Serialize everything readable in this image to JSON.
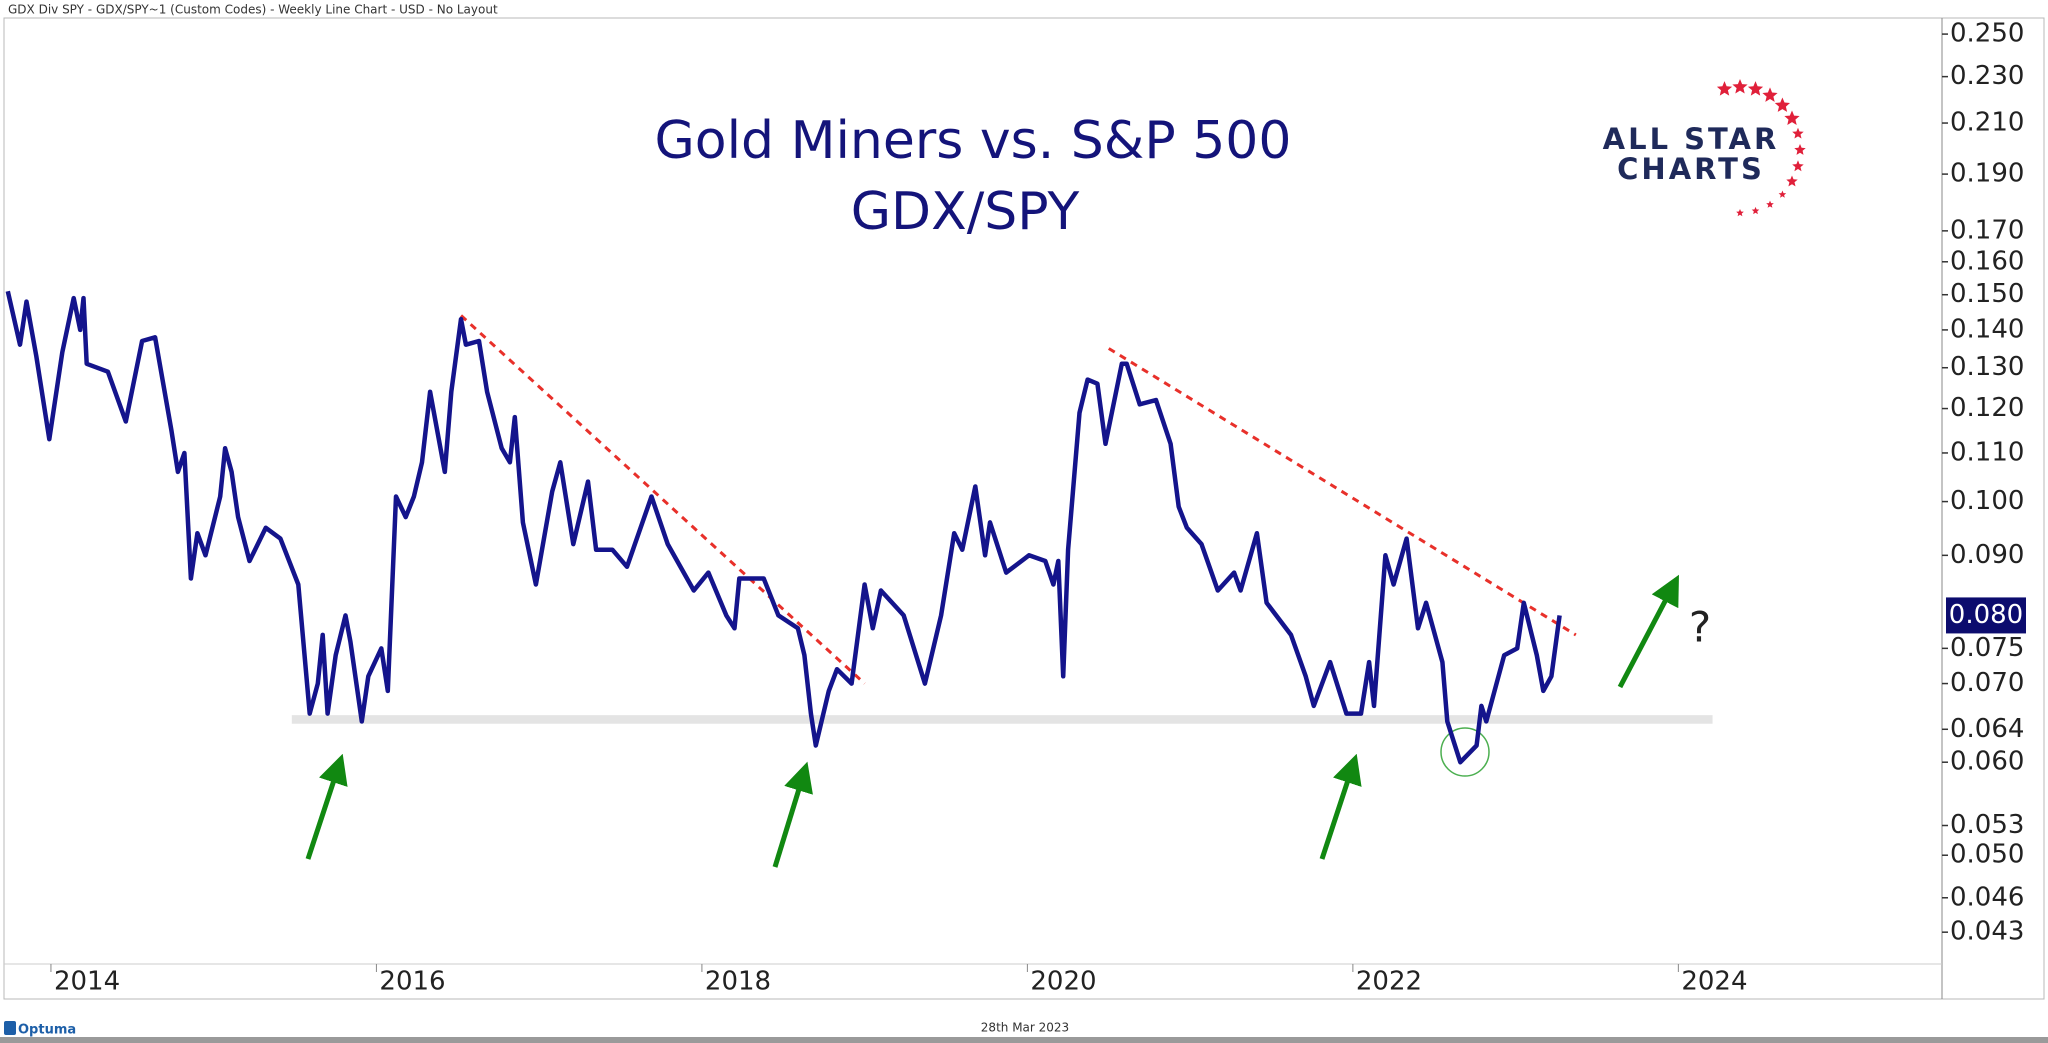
{
  "header": "GDX Div SPY - GDX/SPY~1 (Custom Codes) - Weekly Line Chart - USD - No Layout",
  "footer_date": "28th Mar 2023",
  "brand": "Optuma",
  "logo_line1": "ALL STAR",
  "logo_line2": "CHARTS",
  "chart_data": {
    "type": "line",
    "title": "Gold Miners vs. S&P 500",
    "subtitle": "GDX/SPY",
    "log_scale": true,
    "grid": false,
    "x": [
      2013.735,
      2013.81,
      2013.85,
      2013.91,
      2013.99,
      2014.07,
      2014.14,
      2014.18,
      2014.2,
      2014.22,
      2014.35,
      2014.46,
      2014.56,
      2014.64,
      2014.74,
      2014.78,
      2014.82,
      2014.86,
      2014.9,
      2014.95,
      2015.04,
      2015.07,
      2015.11,
      2015.15,
      2015.22,
      2015.32,
      2015.41,
      2015.52,
      2015.59,
      2015.64,
      2015.67,
      2015.7,
      2015.75,
      2015.81,
      2015.84,
      2015.91,
      2015.95,
      2016.03,
      2016.07,
      2016.12,
      2016.18,
      2016.23,
      2016.28,
      2016.33,
      2016.42,
      2016.46,
      2016.52,
      2016.55,
      2016.63,
      2016.68,
      2016.77,
      2016.82,
      2016.85,
      2016.9,
      2016.98,
      2017.08,
      2017.13,
      2017.21,
      2017.3,
      2017.35,
      2017.45,
      2017.54,
      2017.69,
      2017.79,
      2017.95,
      2018.04,
      2018.15,
      2018.2,
      2018.23,
      2018.38,
      2018.47,
      2018.59,
      2018.63,
      2018.67,
      2018.7,
      2018.78,
      2018.83,
      2018.92,
      2019.0,
      2019.05,
      2019.1,
      2019.24,
      2019.37,
      2019.47,
      2019.55,
      2019.6,
      2019.68,
      2019.74,
      2019.77,
      2019.87,
      2020.01,
      2020.11,
      2020.16,
      2020.19,
      2020.22,
      2020.25,
      2020.32,
      2020.37,
      2020.43,
      2020.48,
      2020.58,
      2020.61,
      2020.69,
      2020.79,
      2020.88,
      2020.93,
      2020.98,
      2021.07,
      2021.17,
      2021.27,
      2021.31,
      2021.41,
      2021.47,
      2021.62,
      2021.71,
      2021.76,
      2021.86,
      2021.96,
      2022.05,
      2022.1,
      2022.13,
      2022.2,
      2022.25,
      2022.33,
      2022.4,
      2022.45,
      2022.55,
      2022.58,
      2022.66,
      2022.76,
      2022.79,
      2022.82,
      2022.93,
      2023.01,
      2023.05,
      2023.13,
      2023.17,
      2023.22,
      2023.27
    ],
    "series": [
      {
        "color": "#14148c",
        "values": [
          0.151,
          0.136,
          0.148,
          0.133,
          0.113,
          0.134,
          0.149,
          0.14,
          0.149,
          0.131,
          0.129,
          0.117,
          0.137,
          0.138,
          0.115,
          0.106,
          0.11,
          0.086,
          0.094,
          0.09,
          0.101,
          0.111,
          0.106,
          0.097,
          0.089,
          0.095,
          0.093,
          0.085,
          0.066,
          0.07,
          0.077,
          0.066,
          0.074,
          0.08,
          0.076,
          0.065,
          0.071,
          0.075,
          0.069,
          0.101,
          0.097,
          0.101,
          0.108,
          0.124,
          0.106,
          0.124,
          0.143,
          0.136,
          0.137,
          0.124,
          0.111,
          0.108,
          0.118,
          0.096,
          0.085,
          0.102,
          0.108,
          0.092,
          0.104,
          0.091,
          0.091,
          0.088,
          0.101,
          0.092,
          0.084,
          0.087,
          0.08,
          0.078,
          0.086,
          0.086,
          0.08,
          0.078,
          0.074,
          0.066,
          0.062,
          0.069,
          0.072,
          0.07,
          0.085,
          0.078,
          0.084,
          0.08,
          0.07,
          0.08,
          0.094,
          0.091,
          0.103,
          0.09,
          0.096,
          0.087,
          0.09,
          0.089,
          0.085,
          0.089,
          0.071,
          0.091,
          0.119,
          0.127,
          0.126,
          0.112,
          0.131,
          0.131,
          0.121,
          0.122,
          0.112,
          0.099,
          0.095,
          0.092,
          0.084,
          0.087,
          0.084,
          0.094,
          0.082,
          0.077,
          0.071,
          0.067,
          0.073,
          0.066,
          0.066,
          0.073,
          0.067,
          0.09,
          0.085,
          0.093,
          0.078,
          0.082,
          0.073,
          0.065,
          0.06,
          0.062,
          0.067,
          0.065,
          0.074,
          0.075,
          0.082,
          0.074,
          0.069,
          0.071,
          0.08
        ]
      }
    ],
    "current_value_label": "0.080",
    "xlim": [
      2013.73,
      2025.62
    ],
    "xticks": [
      2014,
      2016,
      2018,
      2020,
      2022,
      2024
    ],
    "ylim": [
      0.0404,
      0.257
    ],
    "yticks": [
      {
        "value": 0.25,
        "label": "0.250"
      },
      {
        "value": 0.23,
        "label": "0.230"
      },
      {
        "value": 0.21,
        "label": "0.210"
      },
      {
        "value": 0.19,
        "label": "0.190"
      },
      {
        "value": 0.17,
        "label": "0.170"
      },
      {
        "value": 0.16,
        "label": "0.160"
      },
      {
        "value": 0.15,
        "label": "0.150"
      },
      {
        "value": 0.14,
        "label": "0.140"
      },
      {
        "value": 0.13,
        "label": "0.130"
      },
      {
        "value": 0.12,
        "label": "0.120"
      },
      {
        "value": 0.11,
        "label": "0.110"
      },
      {
        "value": 0.1,
        "label": "0.100"
      },
      {
        "value": 0.09,
        "label": "0.090"
      },
      {
        "value": 0.075,
        "label": "0.075"
      },
      {
        "value": 0.07,
        "label": "0.070"
      },
      {
        "value": 0.064,
        "label": "0.064"
      },
      {
        "value": 0.06,
        "label": "0.060"
      },
      {
        "value": 0.053,
        "label": "0.053"
      },
      {
        "value": 0.05,
        "label": "0.050"
      },
      {
        "value": 0.046,
        "label": "0.046"
      },
      {
        "value": 0.043,
        "label": "0.043"
      }
    ],
    "trendlines": [
      {
        "color": "#e8302a",
        "x": [
          2016.52,
          2019.0
        ],
        "y": [
          0.144,
          0.07
        ]
      },
      {
        "color": "#e8302a",
        "x": [
          2020.5,
          2023.37
        ],
        "y": [
          0.135,
          0.077
        ]
      }
    ],
    "support_band": {
      "color": "#e4e4e4",
      "xlim": [
        2015.48,
        2024.21
      ],
      "ylim": [
        0.0647,
        0.0658
      ]
    },
    "annotation": "?"
  }
}
